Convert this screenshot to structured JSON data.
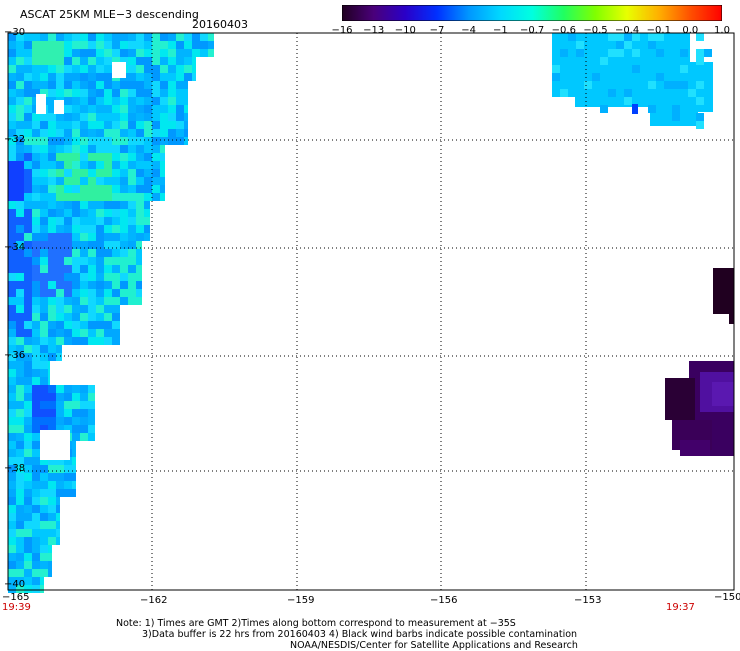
{
  "header": {
    "title": "ASCAT 25KM MLE−3 descending",
    "date": "20160403"
  },
  "colorbar": {
    "ticks": [
      "−16",
      "−13",
      "−10",
      "−7",
      "−4",
      "−1",
      "−0.7",
      "−0.6",
      "−0.5",
      "−0.4",
      "−0.1",
      "0.0",
      "1.0"
    ],
    "colors": [
      "#200020",
      "#4a007a",
      "#2a00c8",
      "#0030ff",
      "#0096ff",
      "#00d8ff",
      "#00ffe0",
      "#20ff60",
      "#80ff00",
      "#e8ff00",
      "#ffb000",
      "#ff5000",
      "#ff0000"
    ]
  },
  "axes": {
    "y_labels": [
      "−30",
      "−32",
      "−34",
      "−36",
      "−38",
      "−40"
    ],
    "x_labels": [
      "−165",
      "−162",
      "−159",
      "−156",
      "−153",
      "−150"
    ]
  },
  "times": {
    "left": "19:39",
    "right": "19:37"
  },
  "notes": {
    "line1": "Note: 1) Times are GMT 2)Times along bottom correspond to measurement at −35S",
    "line2": "3)Data buffer is 22 hrs from 20160403 4) Black wind barbs indicate possible contamination",
    "line3": "NOAA/NESDIS/Center for Satellite Applications and Research"
  }
}
